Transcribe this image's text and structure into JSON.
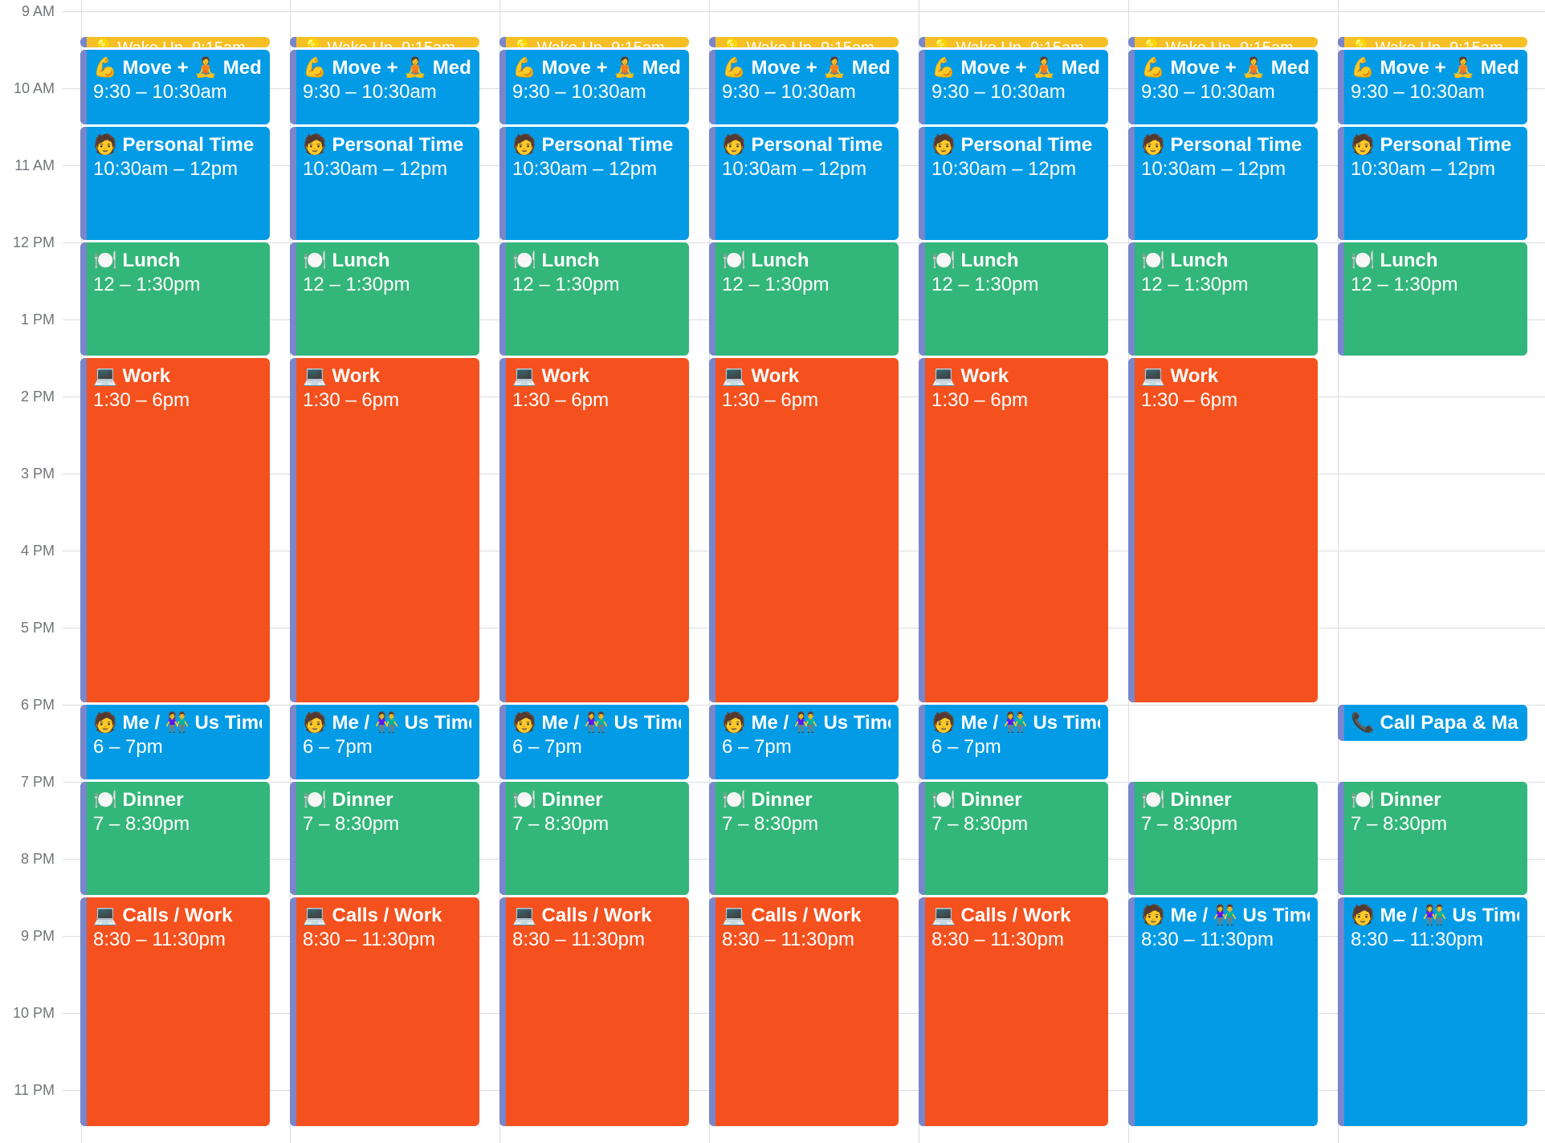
{
  "colors": {
    "tomato": "#f4511e",
    "basil": "#33b679",
    "peacock": "#039be5",
    "banana": "#f6bf26",
    "lavender_strip": "#7986cb",
    "grid": "#dadce0",
    "label": "#70757a"
  },
  "time_labels": [
    "9 AM",
    "10 AM",
    "11 AM",
    "12 PM",
    "1 PM",
    "2 PM",
    "3 PM",
    "4 PM",
    "5 PM",
    "6 PM",
    "7 PM",
    "8 PM",
    "9 PM",
    "10 PM",
    "11 PM"
  ],
  "days": [
    {
      "events": [
        {
          "title": "💡 Wake Up",
          "time": ", 9:15am",
          "start": 9.25,
          "end": 9.5,
          "color": "banana",
          "style": "compact"
        },
        {
          "title": "💪 Move + 🧘 Meditate",
          "time": "9:30 – 10:30am",
          "start": 9.5,
          "end": 10.5,
          "color": "peacock"
        },
        {
          "title": "🧑 Personal Time",
          "time": "10:30am – 12pm",
          "start": 10.5,
          "end": 12.0,
          "color": "peacock"
        },
        {
          "title": "🍽️ Lunch",
          "time": "12 – 1:30pm",
          "start": 12.0,
          "end": 13.5,
          "color": "basil"
        },
        {
          "title": "💻 Work",
          "time": "1:30 – 6pm",
          "start": 13.5,
          "end": 18.0,
          "color": "tomato"
        },
        {
          "title": "🧑 Me / 👫 Us Time",
          "time": "6 – 7pm",
          "start": 18.0,
          "end": 19.0,
          "color": "peacock"
        },
        {
          "title": "🍽️ Dinner",
          "time": "7 – 8:30pm",
          "start": 19.0,
          "end": 20.5,
          "color": "basil"
        },
        {
          "title": "💻 Calls / Work",
          "time": "8:30 – 11:30pm",
          "start": 20.5,
          "end": 23.5,
          "color": "tomato"
        }
      ]
    },
    {
      "events": [
        {
          "title": "💡 Wake Up",
          "time": ", 9:15am",
          "start": 9.25,
          "end": 9.5,
          "color": "banana",
          "style": "compact"
        },
        {
          "title": "💪 Move + 🧘 Meditate",
          "time": "9:30 – 10:30am",
          "start": 9.5,
          "end": 10.5,
          "color": "peacock"
        },
        {
          "title": "🧑 Personal Time",
          "time": "10:30am – 12pm",
          "start": 10.5,
          "end": 12.0,
          "color": "peacock"
        },
        {
          "title": "🍽️ Lunch",
          "time": "12 – 1:30pm",
          "start": 12.0,
          "end": 13.5,
          "color": "basil"
        },
        {
          "title": "💻 Work",
          "time": "1:30 – 6pm",
          "start": 13.5,
          "end": 18.0,
          "color": "tomato"
        },
        {
          "title": "🧑 Me / 👫 Us Time",
          "time": "6 – 7pm",
          "start": 18.0,
          "end": 19.0,
          "color": "peacock"
        },
        {
          "title": "🍽️ Dinner",
          "time": "7 – 8:30pm",
          "start": 19.0,
          "end": 20.5,
          "color": "basil"
        },
        {
          "title": "💻 Calls / Work",
          "time": "8:30 – 11:30pm",
          "start": 20.5,
          "end": 23.5,
          "color": "tomato"
        }
      ]
    },
    {
      "events": [
        {
          "title": "💡 Wake Up",
          "time": ", 9:15am",
          "start": 9.25,
          "end": 9.5,
          "color": "banana",
          "style": "compact"
        },
        {
          "title": "💪 Move + 🧘 Meditate",
          "time": "9:30 – 10:30am",
          "start": 9.5,
          "end": 10.5,
          "color": "peacock"
        },
        {
          "title": "🧑 Personal Time",
          "time": "10:30am – 12pm",
          "start": 10.5,
          "end": 12.0,
          "color": "peacock"
        },
        {
          "title": "🍽️ Lunch",
          "time": "12 – 1:30pm",
          "start": 12.0,
          "end": 13.5,
          "color": "basil"
        },
        {
          "title": "💻 Work",
          "time": "1:30 – 6pm",
          "start": 13.5,
          "end": 18.0,
          "color": "tomato"
        },
        {
          "title": "🧑 Me / 👫 Us Time",
          "time": "6 – 7pm",
          "start": 18.0,
          "end": 19.0,
          "color": "peacock"
        },
        {
          "title": "🍽️ Dinner",
          "time": "7 – 8:30pm",
          "start": 19.0,
          "end": 20.5,
          "color": "basil"
        },
        {
          "title": "💻 Calls / Work",
          "time": "8:30 – 11:30pm",
          "start": 20.5,
          "end": 23.5,
          "color": "tomato"
        }
      ]
    },
    {
      "events": [
        {
          "title": "💡 Wake Up",
          "time": ", 9:15am",
          "start": 9.25,
          "end": 9.5,
          "color": "banana",
          "style": "compact"
        },
        {
          "title": "💪 Move + 🧘 Meditate",
          "time": "9:30 – 10:30am",
          "start": 9.5,
          "end": 10.5,
          "color": "peacock"
        },
        {
          "title": "🧑 Personal Time",
          "time": "10:30am – 12pm",
          "start": 10.5,
          "end": 12.0,
          "color": "peacock"
        },
        {
          "title": "🍽️ Lunch",
          "time": "12 – 1:30pm",
          "start": 12.0,
          "end": 13.5,
          "color": "basil"
        },
        {
          "title": "💻 Work",
          "time": "1:30 – 6pm",
          "start": 13.5,
          "end": 18.0,
          "color": "tomato"
        },
        {
          "title": "🧑 Me / 👫 Us Time",
          "time": "6 – 7pm",
          "start": 18.0,
          "end": 19.0,
          "color": "peacock"
        },
        {
          "title": "🍽️ Dinner",
          "time": "7 – 8:30pm",
          "start": 19.0,
          "end": 20.5,
          "color": "basil"
        },
        {
          "title": "💻 Calls / Work",
          "time": "8:30 – 11:30pm",
          "start": 20.5,
          "end": 23.5,
          "color": "tomato"
        }
      ]
    },
    {
      "events": [
        {
          "title": "💡 Wake Up",
          "time": ", 9:15am",
          "start": 9.25,
          "end": 9.5,
          "color": "banana",
          "style": "compact"
        },
        {
          "title": "💪 Move + 🧘 Meditate",
          "time": "9:30 – 10:30am",
          "start": 9.5,
          "end": 10.5,
          "color": "peacock"
        },
        {
          "title": "🧑 Personal Time",
          "time": "10:30am – 12pm",
          "start": 10.5,
          "end": 12.0,
          "color": "peacock"
        },
        {
          "title": "🍽️ Lunch",
          "time": "12 – 1:30pm",
          "start": 12.0,
          "end": 13.5,
          "color": "basil"
        },
        {
          "title": "💻 Work",
          "time": "1:30 – 6pm",
          "start": 13.5,
          "end": 18.0,
          "color": "tomato"
        },
        {
          "title": "🧑 Me / 👫 Us Time",
          "time": "6 – 7pm",
          "start": 18.0,
          "end": 19.0,
          "color": "peacock"
        },
        {
          "title": "🍽️ Dinner",
          "time": "7 – 8:30pm",
          "start": 19.0,
          "end": 20.5,
          "color": "basil"
        },
        {
          "title": "💻 Calls / Work",
          "time": "8:30 – 11:30pm",
          "start": 20.5,
          "end": 23.5,
          "color": "tomato"
        }
      ]
    },
    {
      "events": [
        {
          "title": "💡 Wake Up",
          "time": ", 9:15am",
          "start": 9.25,
          "end": 9.5,
          "color": "banana",
          "style": "compact"
        },
        {
          "title": "💪 Move + 🧘 Meditate",
          "time": "9:30 – 10:30am",
          "start": 9.5,
          "end": 10.5,
          "color": "peacock"
        },
        {
          "title": "🧑 Personal Time",
          "time": "10:30am – 12pm",
          "start": 10.5,
          "end": 12.0,
          "color": "peacock"
        },
        {
          "title": "🍽️ Lunch",
          "time": "12 – 1:30pm",
          "start": 12.0,
          "end": 13.5,
          "color": "basil"
        },
        {
          "title": "💻 Work",
          "time": "1:30 – 6pm",
          "start": 13.5,
          "end": 18.0,
          "color": "tomato"
        },
        {
          "title": "🍽️ Dinner",
          "time": "7 – 8:30pm",
          "start": 19.0,
          "end": 20.5,
          "color": "basil"
        },
        {
          "title": "🧑 Me / 👫 Us Time",
          "time": "8:30 – 11:30pm",
          "start": 20.5,
          "end": 23.5,
          "color": "peacock"
        }
      ]
    },
    {
      "events": [
        {
          "title": "💡 Wake Up",
          "time": ", 9:15am",
          "start": 9.25,
          "end": 9.5,
          "color": "banana",
          "style": "compact"
        },
        {
          "title": "💪 Move + 🧘 Meditate",
          "time": "9:30 – 10:30am",
          "start": 9.5,
          "end": 10.5,
          "color": "peacock"
        },
        {
          "title": "🧑 Personal Time",
          "time": "10:30am – 12pm",
          "start": 10.5,
          "end": 12.0,
          "color": "peacock"
        },
        {
          "title": "🍽️ Lunch",
          "time": "12 – 1:30pm",
          "start": 12.0,
          "end": 13.5,
          "color": "basil"
        },
        {
          "title": "📞 Call Papa & Mama",
          "time": "",
          "start": 18.0,
          "end": 18.5,
          "color": "peacock",
          "style": "single"
        },
        {
          "title": "🍽️ Dinner",
          "time": "7 – 8:30pm",
          "start": 19.0,
          "end": 20.5,
          "color": "basil"
        },
        {
          "title": "🧑 Me / 👫 Us Time",
          "time": "8:30 – 11:30pm",
          "start": 20.5,
          "end": 23.5,
          "color": "peacock"
        }
      ]
    }
  ]
}
